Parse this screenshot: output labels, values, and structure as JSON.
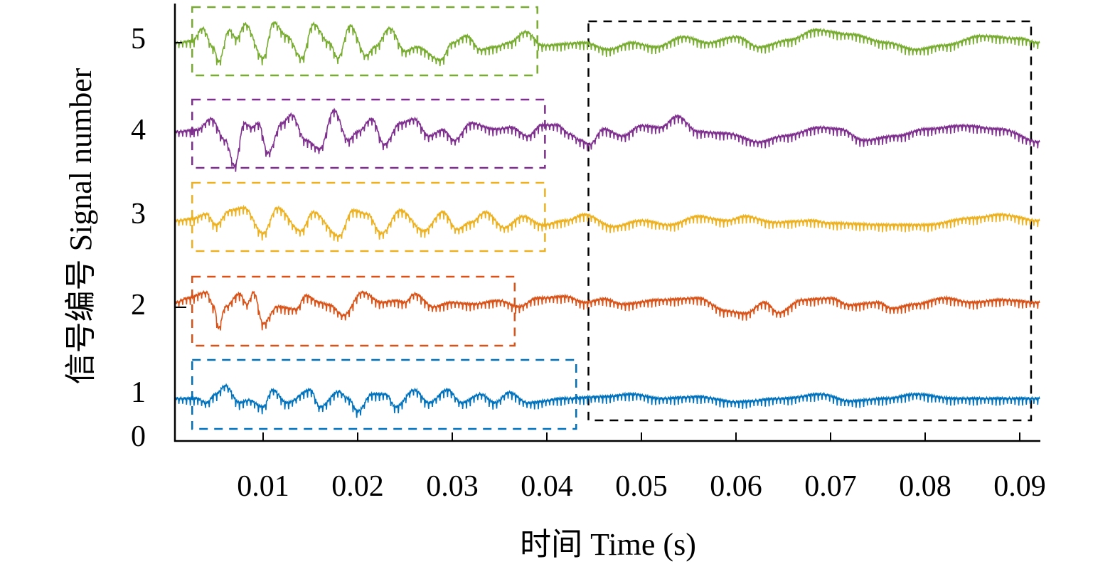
{
  "chart_data": {
    "type": "line",
    "xlabel": "时间 Time (s)",
    "ylabel": "信号编号 Signal number",
    "xlim": [
      0.0007,
      0.0921
    ],
    "x_ticks": [
      "0.01",
      "0.02",
      "0.03",
      "0.04",
      "0.05",
      "0.06",
      "0.07",
      "0.08",
      "0.09"
    ],
    "x_tick_values": [
      0.01,
      0.02,
      0.03,
      0.04,
      0.05,
      0.06,
      0.07,
      0.08,
      0.09
    ],
    "y_ticks": [
      "5",
      "4",
      "3",
      "2",
      "1",
      "0"
    ],
    "grid": false,
    "series": [
      {
        "name": "1",
        "color": "#0072BD",
        "points": [
          [
            0.0007,
            0
          ],
          [
            0.003,
            0
          ],
          [
            0.004,
            -0.05
          ],
          [
            0.005,
            0.05
          ],
          [
            0.006,
            0.15
          ],
          [
            0.0075,
            -0.05
          ],
          [
            0.0085,
            -0.02
          ],
          [
            0.01,
            -0.1
          ],
          [
            0.011,
            0.1
          ],
          [
            0.0125,
            -0.05
          ],
          [
            0.015,
            0.1
          ],
          [
            0.016,
            -0.1
          ],
          [
            0.018,
            0.08
          ],
          [
            0.019,
            0
          ],
          [
            0.02,
            -0.15
          ],
          [
            0.0215,
            0.05
          ],
          [
            0.023,
            0.05
          ],
          [
            0.024,
            -0.1
          ],
          [
            0.026,
            0.1
          ],
          [
            0.0275,
            -0.05
          ],
          [
            0.0295,
            0.1
          ],
          [
            0.031,
            -0.05
          ],
          [
            0.033,
            0.05
          ],
          [
            0.0345,
            -0.05
          ],
          [
            0.036,
            0.07
          ],
          [
            0.038,
            -0.05
          ],
          [
            0.042,
            0
          ],
          [
            0.046,
            0.02
          ],
          [
            0.049,
            0.05
          ],
          [
            0.052,
            0
          ],
          [
            0.056,
            0.02
          ],
          [
            0.06,
            -0.04
          ],
          [
            0.065,
            0
          ],
          [
            0.069,
            0.05
          ],
          [
            0.072,
            -0.03
          ],
          [
            0.076,
            0
          ],
          [
            0.079,
            0.05
          ],
          [
            0.083,
            0
          ],
          [
            0.088,
            0
          ],
          [
            0.0921,
            0
          ]
        ]
      },
      {
        "name": "2",
        "color": "#D95319",
        "points": [
          [
            0.0007,
            0
          ],
          [
            0.002,
            0.05
          ],
          [
            0.004,
            0.12
          ],
          [
            0.0048,
            -0.05
          ],
          [
            0.0053,
            -0.3
          ],
          [
            0.006,
            -0.05
          ],
          [
            0.0075,
            0.1
          ],
          [
            0.0083,
            -0.02
          ],
          [
            0.009,
            0.12
          ],
          [
            0.01,
            -0.25
          ],
          [
            0.0115,
            -0.05
          ],
          [
            0.0135,
            -0.08
          ],
          [
            0.0145,
            0.08
          ],
          [
            0.016,
            0
          ],
          [
            0.017,
            -0.03
          ],
          [
            0.0185,
            -0.15
          ],
          [
            0.0205,
            0.12
          ],
          [
            0.0225,
            0
          ],
          [
            0.024,
            0.02
          ],
          [
            0.025,
            0
          ],
          [
            0.026,
            0.1
          ],
          [
            0.028,
            -0.05
          ],
          [
            0.03,
            0
          ],
          [
            0.032,
            -0.02
          ],
          [
            0.035,
            0.02
          ],
          [
            0.037,
            -0.05
          ],
          [
            0.039,
            0.05
          ],
          [
            0.042,
            0.07
          ],
          [
            0.044,
            0
          ],
          [
            0.046,
            0.04
          ],
          [
            0.048,
            -0.02
          ],
          [
            0.052,
            0.03
          ],
          [
            0.056,
            0.05
          ],
          [
            0.059,
            -0.1
          ],
          [
            0.061,
            -0.13
          ],
          [
            0.063,
            0
          ],
          [
            0.0645,
            -0.12
          ],
          [
            0.067,
            0.03
          ],
          [
            0.07,
            0.05
          ],
          [
            0.072,
            -0.03
          ],
          [
            0.075,
            0
          ],
          [
            0.0765,
            -0.07
          ],
          [
            0.079,
            -0.02
          ],
          [
            0.082,
            0.05
          ],
          [
            0.085,
            0
          ],
          [
            0.088,
            0.03
          ],
          [
            0.0921,
            0
          ]
        ]
      },
      {
        "name": "3",
        "color": "#EDB120",
        "points": [
          [
            0.0007,
            0
          ],
          [
            0.0025,
            0.02
          ],
          [
            0.004,
            0.08
          ],
          [
            0.005,
            -0.05
          ],
          [
            0.0065,
            0.12
          ],
          [
            0.008,
            0.15
          ],
          [
            0.01,
            -0.15
          ],
          [
            0.0115,
            0.15
          ],
          [
            0.014,
            -0.12
          ],
          [
            0.0153,
            0.1
          ],
          [
            0.018,
            -0.18
          ],
          [
            0.0195,
            0.12
          ],
          [
            0.021,
            0.08
          ],
          [
            0.0225,
            -0.15
          ],
          [
            0.0245,
            0.12
          ],
          [
            0.027,
            -0.12
          ],
          [
            0.029,
            0.1
          ],
          [
            0.0305,
            -0.1
          ],
          [
            0.032,
            -0.02
          ],
          [
            0.0335,
            0.1
          ],
          [
            0.0355,
            -0.08
          ],
          [
            0.0375,
            0.05
          ],
          [
            0.0395,
            -0.05
          ],
          [
            0.042,
            0
          ],
          [
            0.044,
            0.07
          ],
          [
            0.047,
            -0.07
          ],
          [
            0.05,
            0
          ],
          [
            0.053,
            -0.05
          ],
          [
            0.056,
            0.05
          ],
          [
            0.059,
            0
          ],
          [
            0.061,
            0.05
          ],
          [
            0.064,
            -0.02
          ],
          [
            0.068,
            0
          ],
          [
            0.07,
            -0.03
          ],
          [
            0.076,
            -0.05
          ],
          [
            0.08,
            -0.05
          ],
          [
            0.085,
            0.03
          ],
          [
            0.088,
            0.07
          ],
          [
            0.0921,
            0
          ]
        ]
      },
      {
        "name": "4",
        "color": "#7E2F8E",
        "points": [
          [
            0.0007,
            0
          ],
          [
            0.003,
            0.02
          ],
          [
            0.0045,
            0.15
          ],
          [
            0.006,
            -0.1
          ],
          [
            0.007,
            -0.4
          ],
          [
            0.008,
            0.1
          ],
          [
            0.0088,
            0.05
          ],
          [
            0.0095,
            0.1
          ],
          [
            0.0105,
            -0.25
          ],
          [
            0.012,
            0.1
          ],
          [
            0.013,
            0.2
          ],
          [
            0.0145,
            -0.1
          ],
          [
            0.016,
            -0.2
          ],
          [
            0.0175,
            0.25
          ],
          [
            0.019,
            -0.1
          ],
          [
            0.02,
            0
          ],
          [
            0.0215,
            0.15
          ],
          [
            0.0228,
            -0.15
          ],
          [
            0.0245,
            0.1
          ],
          [
            0.026,
            0.15
          ],
          [
            0.0275,
            -0.05
          ],
          [
            0.029,
            0.02
          ],
          [
            0.0302,
            -0.1
          ],
          [
            0.032,
            0.1
          ],
          [
            0.0345,
            0.03
          ],
          [
            0.0362,
            0.05
          ],
          [
            0.038,
            -0.05
          ],
          [
            0.0395,
            0.08
          ],
          [
            0.041,
            0.08
          ],
          [
            0.0425,
            -0.03
          ],
          [
            0.0435,
            -0.1
          ],
          [
            0.0445,
            -0.15
          ],
          [
            0.046,
            0.03
          ],
          [
            0.048,
            -0.05
          ],
          [
            0.05,
            0.07
          ],
          [
            0.052,
            0.05
          ],
          [
            0.0538,
            0.18
          ],
          [
            0.056,
            0
          ],
          [
            0.059,
            -0.02
          ],
          [
            0.0625,
            -0.12
          ],
          [
            0.065,
            -0.05
          ],
          [
            0.069,
            0.05
          ],
          [
            0.071,
            0.03
          ],
          [
            0.0735,
            -0.1
          ],
          [
            0.077,
            -0.05
          ],
          [
            0.08,
            0.03
          ],
          [
            0.084,
            0.07
          ],
          [
            0.088,
            0.03
          ],
          [
            0.0921,
            -0.12
          ]
        ]
      },
      {
        "name": "5",
        "color": "#77AC30",
        "points": [
          [
            0.0007,
            0
          ],
          [
            0.0025,
            0.02
          ],
          [
            0.0036,
            0.17
          ],
          [
            0.0047,
            -0.05
          ],
          [
            0.0053,
            -0.22
          ],
          [
            0.0064,
            0.15
          ],
          [
            0.0072,
            0.05
          ],
          [
            0.0081,
            0.22
          ],
          [
            0.01,
            -0.18
          ],
          [
            0.0111,
            0.24
          ],
          [
            0.0125,
            0.08
          ],
          [
            0.0141,
            -0.18
          ],
          [
            0.0153,
            0.22
          ],
          [
            0.017,
            0
          ],
          [
            0.0179,
            -0.18
          ],
          [
            0.0192,
            0.2
          ],
          [
            0.0209,
            -0.15
          ],
          [
            0.0218,
            -0.05
          ],
          [
            0.0234,
            0.17
          ],
          [
            0.025,
            -0.1
          ],
          [
            0.0262,
            -0.05
          ],
          [
            0.0288,
            -0.2
          ],
          [
            0.03,
            0
          ],
          [
            0.0315,
            0.08
          ],
          [
            0.033,
            -0.08
          ],
          [
            0.0345,
            -0.05
          ],
          [
            0.036,
            0
          ],
          [
            0.0378,
            0.13
          ],
          [
            0.0395,
            -0.03
          ],
          [
            0.044,
            0
          ],
          [
            0.0465,
            -0.08
          ],
          [
            0.049,
            0
          ],
          [
            0.0515,
            -0.05
          ],
          [
            0.0545,
            0.07
          ],
          [
            0.057,
            0
          ],
          [
            0.06,
            0.07
          ],
          [
            0.0625,
            -0.05
          ],
          [
            0.0655,
            0.03
          ],
          [
            0.0685,
            0.15
          ],
          [
            0.072,
            0.1
          ],
          [
            0.076,
            0
          ],
          [
            0.079,
            -0.08
          ],
          [
            0.082,
            -0.03
          ],
          [
            0.086,
            0.08
          ],
          [
            0.09,
            0.05
          ],
          [
            0.0921,
            0
          ]
        ]
      }
    ],
    "highlight_boxes": [
      {
        "signal": "5",
        "color": "#77AC30",
        "t_range": [
          0.0025,
          0.039
        ]
      },
      {
        "signal": "4",
        "color": "#7E2F8E",
        "t_range": [
          0.0025,
          0.0398
        ]
      },
      {
        "signal": "3",
        "color": "#EDB120",
        "t_range": [
          0.0025,
          0.0398
        ]
      },
      {
        "signal": "2",
        "color": "#D95319",
        "t_range": [
          0.0025,
          0.0366
        ]
      },
      {
        "signal": "1",
        "color": "#0072BD",
        "t_range": [
          0.0025,
          0.0431
        ]
      },
      {
        "signal": "all",
        "color": "#000000",
        "t_range": [
          0.0444,
          0.0912
        ]
      }
    ]
  }
}
